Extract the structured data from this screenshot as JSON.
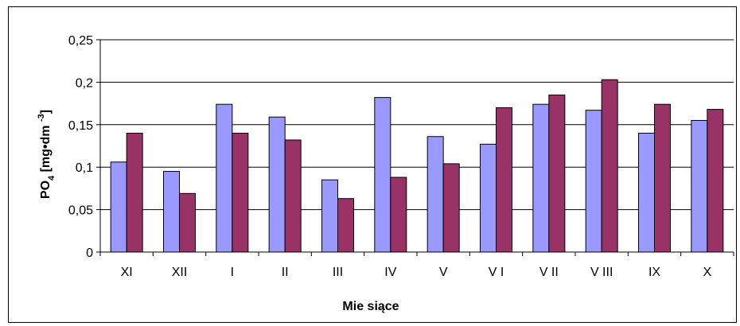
{
  "chart_data": {
    "type": "bar",
    "title": "",
    "xlabel": "Mie siące",
    "ylabel_main": "PO",
    "ylabel_sub": "4",
    "ylabel_rest": " [mg•dm ",
    "ylabel_sup": "-3",
    "ylabel_close": "]",
    "ylim": [
      0,
      0.25
    ],
    "yticks": [
      {
        "value": 0,
        "label": "0"
      },
      {
        "value": 0.05,
        "label": "0,05"
      },
      {
        "value": 0.1,
        "label": "0,1"
      },
      {
        "value": 0.15,
        "label": "0,15"
      },
      {
        "value": 0.2,
        "label": "0,2"
      },
      {
        "value": 0.25,
        "label": "0,25"
      }
    ],
    "grid": true,
    "legend": "none",
    "categories": [
      "XI",
      "XII",
      "I",
      "II",
      "III",
      "IV",
      "V",
      "V I",
      "V II",
      "V III",
      "IX",
      "X"
    ],
    "series": [
      {
        "color": "#9999ff",
        "values": [
          0.106,
          0.095,
          0.174,
          0.159,
          0.085,
          0.182,
          0.136,
          0.127,
          0.174,
          0.167,
          0.14,
          0.155
        ]
      },
      {
        "color": "#993366",
        "values": [
          0.14,
          0.069,
          0.14,
          0.132,
          0.063,
          0.088,
          0.104,
          0.17,
          0.185,
          0.203,
          0.174,
          0.168
        ]
      }
    ]
  }
}
